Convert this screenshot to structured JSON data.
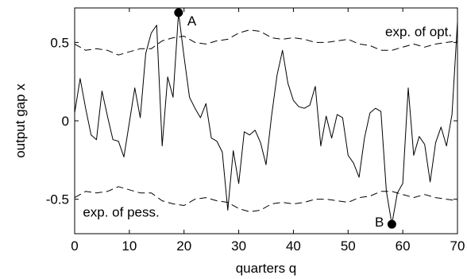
{
  "chart_data": {
    "type": "line",
    "xlabel": "quarters q",
    "ylabel": "output gap x",
    "xlim": [
      0,
      70
    ],
    "ylim": [
      -0.72,
      0.72
    ],
    "xticks": [
      0,
      10,
      20,
      30,
      40,
      50,
      60,
      70
    ],
    "xtick_labels": [
      "0",
      "10",
      "20",
      "30",
      "40",
      "50",
      "60",
      "70"
    ],
    "yticks": [
      0.5,
      0,
      -0.5
    ],
    "ytick_labels": [
      "0.5",
      "0",
      "-0.5"
    ],
    "grid": false,
    "series": [
      {
        "style": "solid",
        "x": [
          0,
          1,
          2,
          3,
          4,
          5,
          6,
          7,
          8,
          9,
          10,
          11,
          12,
          13,
          14,
          15,
          16,
          17,
          18,
          19,
          20,
          21,
          22,
          23,
          24,
          25,
          26,
          27,
          28,
          29,
          30,
          31,
          32,
          33,
          34,
          35,
          36,
          37,
          38,
          39,
          40,
          41,
          42,
          43,
          44,
          45,
          46,
          47,
          48,
          49,
          50,
          51,
          52,
          53,
          54,
          55,
          56,
          57,
          58,
          59,
          60,
          61,
          62,
          63,
          64,
          65,
          66,
          67,
          68,
          69,
          70
        ],
        "values": [
          0.05,
          0.27,
          0.08,
          -0.09,
          -0.12,
          0.19,
          0.03,
          -0.12,
          -0.13,
          -0.23,
          -0.01,
          0.21,
          0.02,
          0.43,
          0.56,
          0.61,
          -0.16,
          0.28,
          0.15,
          0.69,
          0.41,
          0.15,
          0.08,
          0.02,
          0.11,
          -0.11,
          -0.13,
          -0.2,
          -0.57,
          -0.19,
          -0.4,
          -0.07,
          -0.09,
          -0.06,
          -0.14,
          -0.28,
          0.03,
          0.29,
          0.45,
          0.24,
          0.13,
          0.09,
          0.08,
          0.1,
          0.22,
          -0.16,
          0.03,
          -0.11,
          0.04,
          0.02,
          -0.22,
          -0.27,
          -0.36,
          -0.11,
          0.05,
          0.08,
          0.06,
          -0.45,
          -0.66,
          -0.46,
          -0.4,
          0.21,
          -0.22,
          -0.1,
          -0.15,
          -0.39,
          -0.14,
          -0.04,
          -0.16,
          0.04,
          0.63
        ]
      },
      {
        "style": "dashed",
        "x": [
          0,
          2,
          4,
          6,
          8,
          10,
          12,
          14,
          16,
          18,
          20,
          22,
          24,
          26,
          28,
          30,
          32,
          34,
          36,
          38,
          40,
          42,
          44,
          46,
          48,
          50,
          52,
          54,
          56,
          58,
          60,
          62,
          64,
          66,
          68,
          70
        ],
        "values": [
          0.49,
          0.45,
          0.46,
          0.45,
          0.42,
          0.44,
          0.46,
          0.46,
          0.51,
          0.53,
          0.54,
          0.5,
          0.49,
          0.51,
          0.52,
          0.56,
          0.58,
          0.57,
          0.53,
          0.52,
          0.53,
          0.52,
          0.5,
          0.5,
          0.51,
          0.52,
          0.49,
          0.48,
          0.45,
          0.45,
          0.47,
          0.49,
          0.47,
          0.49,
          0.5,
          0.51
        ]
      },
      {
        "style": "dashed",
        "x": [
          0,
          2,
          4,
          6,
          8,
          10,
          12,
          14,
          16,
          18,
          20,
          22,
          24,
          26,
          28,
          30,
          32,
          34,
          36,
          38,
          40,
          42,
          44,
          46,
          48,
          50,
          52,
          54,
          56,
          58,
          60,
          62,
          64,
          66,
          68,
          70
        ],
        "values": [
          -0.49,
          -0.45,
          -0.46,
          -0.45,
          -0.42,
          -0.44,
          -0.46,
          -0.46,
          -0.51,
          -0.53,
          -0.54,
          -0.5,
          -0.49,
          -0.51,
          -0.52,
          -0.56,
          -0.58,
          -0.57,
          -0.53,
          -0.52,
          -0.53,
          -0.52,
          -0.5,
          -0.5,
          -0.51,
          -0.52,
          -0.49,
          -0.48,
          -0.45,
          -0.45,
          -0.47,
          -0.49,
          -0.47,
          -0.49,
          -0.5,
          -0.51
        ]
      }
    ],
    "points": [
      {
        "label": "A",
        "x": 19,
        "y": 0.69
      },
      {
        "label": "B",
        "x": 58,
        "y": -0.66
      }
    ],
    "annotations": [
      {
        "text": "exp. of opt.",
        "x": 69,
        "y": 0.57
      },
      {
        "text": "exp. of pess.",
        "x": 1.5,
        "y": -0.58
      }
    ]
  }
}
